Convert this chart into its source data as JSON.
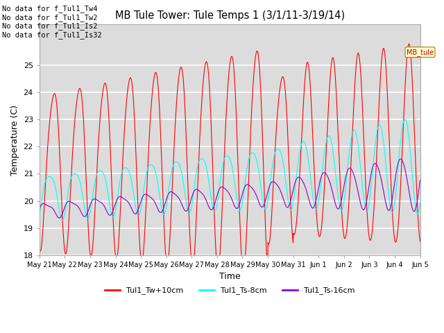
{
  "title": "MB Tule Tower: Tule Temps 1 (3/1/11-3/19/14)",
  "xlabel": "Time",
  "ylabel": "Temperature (C)",
  "ylim": [
    18.0,
    26.5
  ],
  "yticks": [
    18.0,
    19.0,
    20.0,
    21.0,
    22.0,
    23.0,
    24.0,
    25.0
  ],
  "bg_color": "#dcdcdc",
  "fig_color": "#ffffff",
  "annotations": [
    "No data for f_Tul1_Tw4",
    "No data for f_Tul1_Tw2",
    "No data for f_Tul1_Is2",
    "No data for f_Tul1_Is32"
  ],
  "legend": [
    {
      "label": "Tul1_Tw+10cm",
      "color": "#ff0000"
    },
    {
      "label": "Tul1_Ts-8cm",
      "color": "#00ffff"
    },
    {
      "label": "Tul1_Ts-16cm",
      "color": "#8800cc"
    }
  ],
  "tooltip_text": "MB_tule",
  "xticklabels": [
    "May 21",
    "May 22",
    "May 23",
    "May 24",
    "May 25",
    "May 26",
    "May 27",
    "May 28",
    "May 29",
    "May 30",
    "May 31",
    "Jun 1",
    "Jun 2",
    "Jun 3",
    "Jun 4",
    "Jun 5"
  ],
  "n_points": 1440,
  "days": 15
}
